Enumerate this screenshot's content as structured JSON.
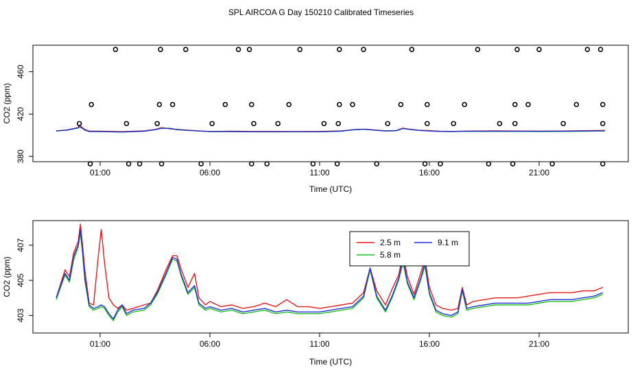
{
  "title": "SPL AIRCOA G  Day 150210  Calibrated Timeseries",
  "colors": {
    "2.5 m": "#e31a1c",
    "5.8 m": "#1fbf1f",
    "9.1 m": "#1f2fd6",
    "axis": "#000000"
  },
  "chart_data": [
    {
      "type": "scatter",
      "title": "",
      "xlabel": "Time (UTC)",
      "ylabel": "CO2 (ppm)",
      "xlim": [
        -1.0,
        24.0
      ],
      "ylim": [
        375,
        485
      ],
      "xticks": [
        1,
        6,
        11,
        16,
        21
      ],
      "xtick_labels": [
        "01:00",
        "06:00",
        "11:00",
        "16:00",
        "21:00"
      ],
      "yticks": [
        380,
        420,
        460
      ],
      "ytick_labels": [
        "380",
        "420",
        "460"
      ],
      "points": {
        "x": [
          0.55,
          0.05,
          0.6,
          1.7,
          2.3,
          2.2,
          2.8,
          3.6,
          3.7,
          3.75,
          3.8,
          4.3,
          4.9,
          5.6,
          6.1,
          6.7,
          7.3,
          7.8,
          7.9,
          7.9,
          8.0,
          8.6,
          9.1,
          9.6,
          10.1,
          10.7,
          11.2,
          11.8,
          11.85,
          11.9,
          11.9,
          12.5,
          13.0,
          13.6,
          14.1,
          14.7,
          15.2,
          15.8,
          15.9,
          15.9,
          16.5,
          17.1,
          17.6,
          18.2,
          18.7,
          19.2,
          19.8,
          19.9,
          19.9,
          20.0,
          20.5,
          21.0,
          21.6,
          22.1,
          22.7,
          23.2,
          23.8,
          23.9,
          23.9,
          23.9
        ],
        "y": [
          373,
          411,
          429,
          481,
          373,
          411,
          373,
          411,
          429,
          481,
          373,
          429,
          481,
          373,
          411,
          429,
          481,
          481,
          429,
          373,
          411,
          373,
          411,
          429,
          481,
          373,
          411,
          373,
          411,
          429,
          481,
          429,
          481,
          373,
          411,
          429,
          481,
          373,
          411,
          429,
          373,
          411,
          429,
          481,
          373,
          411,
          373,
          411,
          429,
          481,
          429,
          481,
          373,
          411,
          429,
          481,
          481,
          429,
          411,
          373
        ]
      },
      "series": [
        {
          "name": "2.5 m",
          "x": [
            -1.0,
            -0.5,
            0.0,
            0.05,
            0.15,
            0.3,
            0.5,
            1.0,
            2.0,
            3.0,
            3.5,
            3.8,
            4.2,
            4.5,
            5.0,
            5.5,
            6.0,
            7.0,
            8.0,
            9.0,
            10.0,
            11.0,
            12.0,
            12.5,
            13.0,
            13.5,
            14.0,
            14.5,
            14.8,
            15.0,
            15.5,
            16.0,
            16.5,
            17.0,
            17.5,
            18.0,
            19.0,
            20.0,
            21.0,
            22.0,
            23.0,
            24.0
          ],
          "values": [
            404.2,
            405.0,
            407.2,
            409.5,
            408.0,
            405.5,
            404.0,
            403.8,
            403.4,
            404.2,
            405.5,
            407.2,
            406.0,
            405.6,
            404.8,
            404.2,
            403.6,
            403.8,
            403.6,
            403.6,
            403.5,
            403.6,
            404.2,
            405.2,
            405.8,
            405.0,
            404.2,
            404.5,
            406.8,
            406.0,
            404.8,
            404.4,
            403.8,
            403.6,
            403.8,
            404.0,
            404.1,
            404.0,
            403.9,
            404.0,
            404.3,
            404.6
          ]
        },
        {
          "name": "5.8 m",
          "x": [
            -1.0,
            -0.5,
            0.0,
            0.05,
            0.15,
            0.3,
            0.5,
            1.0,
            2.0,
            3.0,
            3.5,
            3.8,
            4.2,
            4.5,
            5.0,
            5.5,
            6.0,
            7.0,
            8.0,
            9.0,
            10.0,
            11.0,
            12.0,
            12.5,
            13.0,
            13.5,
            14.0,
            14.5,
            14.8,
            15.0,
            15.5,
            16.0,
            16.5,
            17.0,
            17.5,
            18.0,
            19.0,
            20.0,
            21.0,
            22.0,
            23.0,
            24.0
          ],
          "values": [
            404.0,
            404.8,
            406.8,
            407.8,
            407.2,
            405.0,
            403.6,
            403.4,
            403.0,
            403.8,
            405.2,
            406.8,
            406.6,
            405.4,
            404.6,
            404.0,
            403.4,
            403.4,
            403.2,
            403.2,
            403.2,
            403.2,
            403.8,
            405.0,
            405.6,
            404.8,
            404.0,
            404.2,
            406.4,
            405.8,
            404.6,
            404.0,
            403.6,
            403.4,
            403.6,
            403.6,
            403.6,
            403.6,
            403.5,
            403.6,
            403.8,
            404.0
          ]
        },
        {
          "name": "9.1 m",
          "x": [
            -1.0,
            -0.5,
            0.0,
            0.05,
            0.15,
            0.3,
            0.5,
            1.0,
            2.0,
            3.0,
            3.5,
            3.8,
            4.2,
            4.5,
            5.0,
            5.5,
            6.0,
            7.0,
            8.0,
            9.0,
            10.0,
            11.0,
            12.0,
            12.5,
            13.0,
            13.5,
            14.0,
            14.5,
            14.8,
            15.0,
            15.5,
            16.0,
            16.5,
            17.0,
            17.5,
            18.0,
            19.0,
            20.0,
            21.0,
            22.0,
            23.0,
            24.0
          ],
          "values": [
            404.0,
            404.9,
            407.0,
            408.0,
            407.0,
            404.9,
            403.5,
            403.4,
            403.0,
            403.8,
            405.2,
            406.6,
            406.4,
            405.2,
            404.6,
            404.0,
            403.4,
            403.5,
            403.3,
            403.3,
            403.3,
            403.3,
            403.9,
            405.1,
            405.6,
            404.8,
            404.0,
            404.3,
            406.4,
            405.8,
            404.6,
            404.0,
            403.6,
            403.5,
            403.7,
            403.8,
            403.8,
            403.8,
            403.7,
            403.8,
            404.0,
            404.2
          ]
        }
      ]
    },
    {
      "type": "line",
      "title": "",
      "xlabel": "Time (UTC)",
      "ylabel": "CO2 (ppm)",
      "xlim": [
        -1.0,
        24.0
      ],
      "ylim": [
        402.0,
        408.4
      ],
      "xticks": [
        1,
        6,
        11,
        16,
        21
      ],
      "xtick_labels": [
        "01:00",
        "06:00",
        "11:00",
        "16:00",
        "21:00"
      ],
      "yticks": [
        403,
        405,
        407
      ],
      "ytick_labels": [
        "403",
        "405",
        "407"
      ],
      "legend": {
        "placement": "top-center",
        "entries": [
          "2.5 m",
          "9.1 m",
          "5.8 m"
        ]
      },
      "series": [
        {
          "name": "2.5 m",
          "x": [
            -1.0,
            -0.6,
            -0.4,
            -0.2,
            0.0,
            0.1,
            0.2,
            0.3,
            0.5,
            0.7,
            0.9,
            1.05,
            1.2,
            1.4,
            1.6,
            1.8,
            2.0,
            2.2,
            2.5,
            3.0,
            3.3,
            3.6,
            4.0,
            4.3,
            4.5,
            4.7,
            5.0,
            5.3,
            5.5,
            5.8,
            6.0,
            6.5,
            7.0,
            7.5,
            8.0,
            8.5,
            9.0,
            9.5,
            10.0,
            10.5,
            11.0,
            11.5,
            12.0,
            12.5,
            13.0,
            13.3,
            13.6,
            14.0,
            14.3,
            14.6,
            14.8,
            15.0,
            15.3,
            15.6,
            15.8,
            16.0,
            16.3,
            16.6,
            17.0,
            17.3,
            17.5,
            17.7,
            18.0,
            18.5,
            19.0,
            19.5,
            20.0,
            20.5,
            21.0,
            21.5,
            22.0,
            22.5,
            23.0,
            23.5,
            23.9
          ],
          "values": [
            404.0,
            405.6,
            405.2,
            406.6,
            407.2,
            408.2,
            407.0,
            405.6,
            403.7,
            403.6,
            406.2,
            407.9,
            406.0,
            404.0,
            403.6,
            403.4,
            403.6,
            403.3,
            403.4,
            403.6,
            403.7,
            404.4,
            405.6,
            406.4,
            406.4,
            405.6,
            404.6,
            405.4,
            404.0,
            403.6,
            403.8,
            403.5,
            403.6,
            403.4,
            403.5,
            403.7,
            403.5,
            403.9,
            403.5,
            403.5,
            403.4,
            403.5,
            403.6,
            403.7,
            404.3,
            405.7,
            404.4,
            403.6,
            404.5,
            405.3,
            406.5,
            405.2,
            404.2,
            405.4,
            406.2,
            404.6,
            403.6,
            403.4,
            403.3,
            403.4,
            404.6,
            403.6,
            403.8,
            403.9,
            404.0,
            404.0,
            404.0,
            404.1,
            404.2,
            404.3,
            404.3,
            404.3,
            404.4,
            404.4,
            404.6
          ]
        },
        {
          "name": "5.8 m",
          "x": [
            -1.0,
            -0.6,
            -0.4,
            -0.2,
            0.0,
            0.1,
            0.2,
            0.3,
            0.5,
            0.7,
            0.9,
            1.05,
            1.2,
            1.4,
            1.6,
            1.8,
            2.0,
            2.2,
            2.5,
            3.0,
            3.3,
            3.6,
            4.0,
            4.3,
            4.5,
            4.7,
            5.0,
            5.3,
            5.5,
            5.8,
            6.0,
            6.5,
            7.0,
            7.5,
            8.0,
            8.5,
            9.0,
            9.5,
            10.0,
            10.5,
            11.0,
            11.5,
            12.0,
            12.5,
            13.0,
            13.3,
            13.6,
            14.0,
            14.3,
            14.6,
            14.8,
            15.0,
            15.3,
            15.6,
            15.8,
            16.0,
            16.3,
            16.6,
            17.0,
            17.3,
            17.5,
            17.7,
            18.0,
            18.5,
            19.0,
            19.5,
            20.0,
            20.5,
            21.0,
            21.5,
            22.0,
            22.5,
            23.0,
            23.5,
            23.9
          ],
          "values": [
            403.9,
            405.3,
            404.9,
            406.2,
            406.9,
            407.7,
            406.5,
            405.0,
            403.5,
            403.3,
            403.4,
            403.5,
            403.4,
            403.0,
            402.7,
            403.2,
            403.5,
            403.0,
            403.2,
            403.3,
            403.6,
            404.2,
            405.3,
            406.2,
            406.1,
            405.2,
            404.2,
            404.6,
            403.6,
            403.3,
            403.4,
            403.2,
            403.3,
            403.1,
            403.2,
            403.3,
            403.1,
            403.2,
            403.1,
            403.1,
            403.1,
            403.2,
            403.3,
            403.4,
            404.0,
            405.6,
            404.0,
            403.2,
            404.0,
            405.0,
            406.0,
            404.8,
            403.9,
            405.0,
            405.8,
            404.2,
            403.2,
            403.0,
            402.9,
            403.1,
            404.4,
            403.3,
            403.4,
            403.5,
            403.6,
            403.6,
            403.6,
            403.6,
            403.7,
            403.8,
            403.8,
            403.8,
            403.9,
            404.0,
            404.2
          ]
        },
        {
          "name": "9.1 m",
          "x": [
            -1.0,
            -0.6,
            -0.4,
            -0.2,
            0.0,
            0.1,
            0.2,
            0.3,
            0.5,
            0.7,
            0.9,
            1.05,
            1.2,
            1.4,
            1.6,
            1.8,
            2.0,
            2.2,
            2.5,
            3.0,
            3.3,
            3.6,
            4.0,
            4.3,
            4.5,
            4.7,
            5.0,
            5.3,
            5.5,
            5.8,
            6.0,
            6.5,
            7.0,
            7.5,
            8.0,
            8.5,
            9.0,
            9.5,
            10.0,
            10.5,
            11.0,
            11.5,
            12.0,
            12.5,
            13.0,
            13.3,
            13.6,
            14.0,
            14.3,
            14.6,
            14.8,
            15.0,
            15.3,
            15.6,
            15.8,
            16.0,
            16.3,
            16.6,
            17.0,
            17.3,
            17.5,
            17.7,
            18.0,
            18.5,
            19.0,
            19.5,
            20.0,
            20.5,
            21.0,
            21.5,
            22.0,
            22.5,
            23.0,
            23.5,
            23.9
          ],
          "values": [
            404.0,
            405.4,
            405.0,
            406.4,
            407.0,
            407.9,
            406.7,
            405.2,
            403.6,
            403.4,
            403.5,
            403.6,
            403.5,
            403.1,
            402.8,
            403.3,
            403.6,
            403.1,
            403.3,
            403.4,
            403.7,
            404.3,
            405.4,
            406.3,
            406.2,
            405.3,
            404.3,
            404.7,
            403.7,
            403.4,
            403.5,
            403.3,
            403.4,
            403.2,
            403.3,
            403.4,
            403.2,
            403.3,
            403.2,
            403.2,
            403.2,
            403.3,
            403.4,
            403.5,
            404.1,
            405.7,
            404.1,
            403.3,
            404.1,
            405.1,
            406.2,
            404.9,
            404.0,
            405.1,
            406.0,
            404.3,
            403.3,
            403.1,
            403.0,
            403.2,
            404.5,
            403.4,
            403.5,
            403.6,
            403.7,
            403.7,
            403.7,
            403.7,
            403.8,
            403.9,
            403.9,
            403.9,
            404.0,
            404.1,
            404.3
          ]
        }
      ]
    }
  ]
}
